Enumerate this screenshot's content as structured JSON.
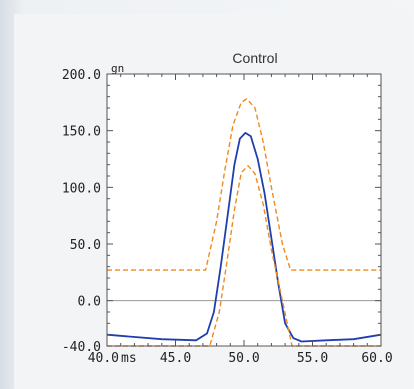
{
  "chart_data": {
    "type": "line",
    "title": "Control",
    "y_unit": "gn",
    "x_unit": "ms",
    "xlim": [
      40.0,
      60.0
    ],
    "ylim": [
      -40.0,
      200.0
    ],
    "y_ticks": [
      "200.0",
      "150.0",
      "100.0",
      "50.0",
      "0.0",
      "-40.0"
    ],
    "y_tick_values": [
      200,
      150,
      100,
      50,
      0,
      -40
    ],
    "x_ticks": [
      "40.0",
      "45.0",
      "50.0",
      "55.0",
      "60.0"
    ],
    "x_tick_values": [
      40,
      45,
      50,
      55,
      60
    ],
    "grid": false,
    "zero_line": true,
    "colors": {
      "signal": "#1f3fb0",
      "corridor": "#f08a1e",
      "zero": "#9a9a9a",
      "frame": "#555555",
      "background": "#ffffff"
    },
    "series": [
      {
        "style": "solid",
        "x": [
          40.0,
          44.0,
          46.5,
          47.3,
          47.8,
          48.3,
          48.8,
          49.3,
          49.7,
          50.1,
          50.5,
          51.0,
          51.5,
          52.0,
          52.5,
          53.0,
          53.6,
          54.2,
          56.0,
          58.0,
          60.0
        ],
        "y": [
          -30,
          -34,
          -35,
          -29,
          -10,
          30,
          75,
          120,
          143,
          148,
          145,
          125,
          95,
          55,
          15,
          -20,
          -33,
          -36,
          -35,
          -34,
          -30
        ]
      },
      {
        "style": "dashed",
        "x": [
          40.0,
          47.2,
          48.0,
          48.6,
          49.2,
          49.8,
          50.2,
          50.8,
          51.4,
          52.0,
          52.8,
          53.4,
          60.0
        ],
        "y": [
          27,
          27,
          70,
          115,
          155,
          175,
          178,
          170,
          140,
          100,
          50,
          27,
          27
        ]
      },
      {
        "style": "dashed",
        "x": [
          40.0,
          47.5,
          48.2,
          48.7,
          49.3,
          49.8,
          50.3,
          50.8,
          51.4,
          52.0,
          52.8,
          53.5,
          60.0
        ],
        "y": [
          -40,
          -40,
          -10,
          30,
          80,
          113,
          119,
          112,
          85,
          45,
          0,
          -40,
          -40
        ]
      }
    ]
  }
}
